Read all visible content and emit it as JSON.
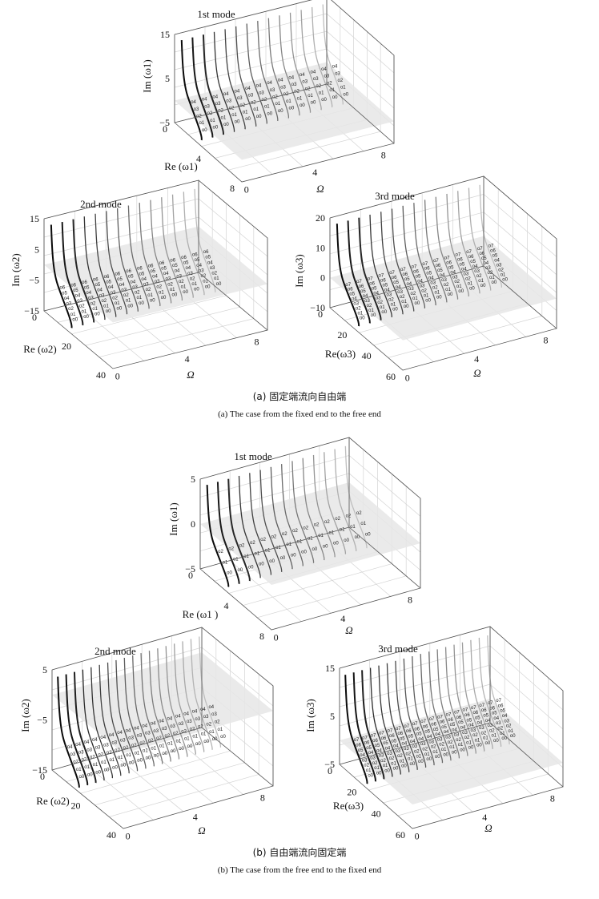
{
  "captions": {
    "a_cn": "(a) 固定端流向自由端",
    "a_en": "(a) The case from the fixed end to the free end",
    "b_cn": "(b) 自由端流向固定端",
    "b_en": "(b) The case from the free end to the fixed end"
  },
  "chart_data": [
    {
      "type": "line",
      "panel": "a",
      "title": "1st mode",
      "xlabel": "Ω",
      "ylabel": "Re (ω1)",
      "zlabel": "Im (ω1)",
      "x_ticks": [
        "0",
        "4",
        "8"
      ],
      "y_ticks": [
        "0",
        "4",
        "8"
      ],
      "z_ticks": [
        "15",
        "5",
        "−5"
      ],
      "zlim": [
        -5,
        15
      ],
      "n_curves": 14,
      "point_labels": [
        "o0",
        "o1",
        "o2",
        "o3",
        "o4"
      ]
    },
    {
      "type": "line",
      "panel": "a",
      "title": "2nd mode",
      "xlabel": "Ω",
      "ylabel": "Re (ω2)",
      "zlabel": "Im (ω2)",
      "x_ticks": [
        "0",
        "4",
        "8"
      ],
      "y_ticks": [
        "0",
        "20",
        "40"
      ],
      "z_ticks": [
        "15",
        "5",
        "−5",
        "−15"
      ],
      "zlim": [
        -15,
        15
      ],
      "n_curves": 14,
      "point_labels": [
        "o0",
        "o1",
        "o2",
        "o3",
        "o4",
        "o5",
        "o6"
      ]
    },
    {
      "type": "line",
      "panel": "a",
      "title": "3rd mode",
      "xlabel": "Ω",
      "ylabel": "Re(ω3)",
      "zlabel": "Im (ω3)",
      "x_ticks": [
        "0",
        "4",
        "8"
      ],
      "y_ticks": [
        "0",
        "20",
        "40",
        "60"
      ],
      "z_ticks": [
        "20",
        "10",
        "0",
        "−10"
      ],
      "zlim": [
        -10,
        20
      ],
      "n_curves": 14,
      "point_labels": [
        "o0",
        "o1",
        "o2",
        "o3",
        "o4",
        "o5",
        "o6",
        "o7"
      ]
    },
    {
      "type": "line",
      "panel": "b",
      "title": "1st mode",
      "xlabel": "Ω",
      "ylabel": "Re (ω1 )",
      "zlabel": "Im (ω1)",
      "x_ticks": [
        "0",
        "4",
        "8"
      ],
      "y_ticks": [
        "0",
        "4",
        "8"
      ],
      "z_ticks": [
        "5",
        "0",
        "−5"
      ],
      "zlim": [
        -5,
        5
      ],
      "n_curves": 14,
      "point_labels": [
        "o0",
        "o1",
        "o2"
      ]
    },
    {
      "type": "line",
      "panel": "b",
      "title": "2nd mode",
      "xlabel": "Ω",
      "ylabel": "Re (ω2)",
      "zlabel": "Im (ω2)",
      "x_ticks": [
        "0",
        "4",
        "8"
      ],
      "y_ticks": [
        "0",
        "20",
        "40"
      ],
      "z_ticks": [
        "5",
        "−5",
        "−15"
      ],
      "zlim": [
        -15,
        5
      ],
      "n_curves": 18,
      "point_labels": [
        "o0",
        "o1",
        "o2",
        "o3",
        "o4"
      ]
    },
    {
      "type": "line",
      "panel": "b",
      "title": "3rd mode",
      "xlabel": "Ω",
      "ylabel": "Re(ω3)",
      "zlabel": "Im (ω3)",
      "x_ticks": [
        "0",
        "4",
        "8"
      ],
      "y_ticks": [
        "0",
        "20",
        "40",
        "60"
      ],
      "z_ticks": [
        "15",
        "5",
        "−5"
      ],
      "zlim": [
        -5,
        15
      ],
      "n_curves": 18,
      "point_labels": [
        "o0",
        "o1",
        "o2",
        "o3",
        "o4",
        "o5",
        "o6",
        "o7"
      ]
    }
  ]
}
